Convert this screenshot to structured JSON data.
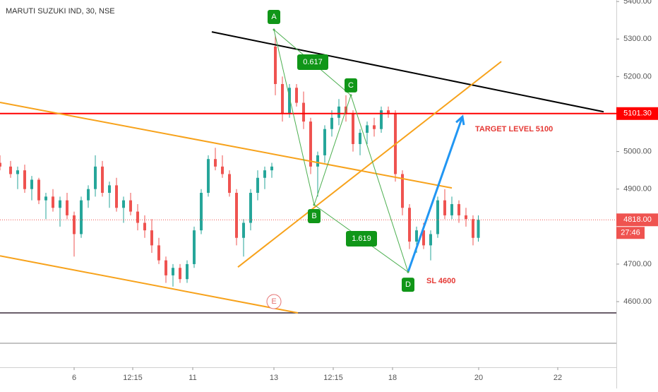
{
  "chart_data": {
    "type": "candlestick",
    "title": "MARUTI SUZUKI IND, 30, NSE",
    "up_color": "#26a69a",
    "down_color": "#ef5350",
    "x": [
      0,
      3,
      5,
      7,
      9,
      11,
      13,
      15,
      17,
      19,
      21,
      23,
      25,
      27,
      29,
      31,
      33,
      35,
      37,
      39,
      41,
      43,
      45,
      47,
      49,
      51,
      53,
      55,
      57,
      59,
      61,
      63,
      65,
      67,
      69,
      71,
      73,
      75,
      77,
      78,
      80,
      82,
      84,
      86,
      88,
      90,
      92,
      94,
      96,
      98,
      100,
      102,
      104,
      106,
      108,
      110,
      112,
      114,
      116,
      118,
      120,
      122,
      124,
      126,
      128,
      130,
      132,
      134,
      135.5
    ],
    "open": [
      4970,
      4960,
      4940,
      4950,
      4900,
      4925,
      4870,
      4880,
      4850,
      4870,
      4830,
      4780,
      4870,
      4900,
      4960,
      4890,
      4910,
      4850,
      4870,
      4840,
      4810,
      4790,
      4750,
      4710,
      4670,
      4690,
      4660,
      4700,
      4790,
      4890,
      4980,
      4960,
      4940,
      4890,
      4770,
      4810,
      4890,
      4930,
      4950,
      5280,
      5180,
      5100,
      5170,
      5130,
      5080,
      4960,
      4990,
      5060,
      5090,
      5120,
      5100,
      5020,
      5050,
      5070,
      5060,
      5110,
      5100,
      4940,
      4850,
      4760,
      4790,
      4750,
      4780,
      4870,
      4830,
      4860,
      4830,
      4820,
      4770
    ],
    "high": [
      4990,
      4975,
      4960,
      4965,
      4935,
      4930,
      4890,
      4900,
      4880,
      4890,
      4840,
      4880,
      4910,
      4990,
      4975,
      4920,
      4930,
      4880,
      4890,
      4860,
      4830,
      4820,
      4770,
      4720,
      4700,
      4700,
      4710,
      4800,
      4900,
      4990,
      5010,
      4990,
      4950,
      4900,
      4820,
      4900,
      4950,
      4960,
      4970,
      5310,
      5200,
      5180,
      5180,
      5160,
      5090,
      5000,
      5070,
      5110,
      5140,
      5150,
      5110,
      5060,
      5080,
      5090,
      5120,
      5120,
      5110,
      4950,
      4860,
      4800,
      4810,
      4790,
      4880,
      4900,
      4880,
      4870,
      4850,
      4830,
      4830
    ],
    "low": [
      4950,
      4930,
      4900,
      4890,
      4870,
      4860,
      4820,
      4840,
      4800,
      4820,
      4720,
      4770,
      4850,
      4880,
      4880,
      4850,
      4840,
      4810,
      4830,
      4790,
      4770,
      4730,
      4700,
      4650,
      4640,
      4650,
      4650,
      4690,
      4780,
      4880,
      4950,
      4930,
      4880,
      4750,
      4720,
      4790,
      4870,
      4900,
      4930,
      5150,
      5080,
      5090,
      5120,
      5060,
      4940,
      4880,
      4970,
      5040,
      5070,
      5080,
      5000,
      4990,
      5020,
      5040,
      5050,
      5090,
      4920,
      4830,
      4740,
      4730,
      4740,
      4710,
      4770,
      4820,
      4820,
      4810,
      4800,
      4750,
      4760
    ],
    "close": [
      4960,
      4940,
      4950,
      4900,
      4925,
      4870,
      4880,
      4850,
      4870,
      4830,
      4780,
      4870,
      4900,
      4960,
      4890,
      4910,
      4850,
      4870,
      4840,
      4810,
      4790,
      4750,
      4710,
      4670,
      4690,
      4660,
      4700,
      4790,
      4890,
      4980,
      4960,
      4940,
      4890,
      4770,
      4810,
      4890,
      4930,
      4950,
      4960,
      5180,
      5100,
      5170,
      5130,
      5080,
      4960,
      4990,
      5060,
      5090,
      5120,
      5100,
      5020,
      5050,
      5070,
      5060,
      5110,
      5100,
      4940,
      4850,
      4760,
      4790,
      4750,
      4780,
      4870,
      4830,
      4860,
      4830,
      4820,
      4770,
      4818
    ],
    "xlim": [
      0,
      174.6
    ],
    "ylim": [
      4425,
      5404
    ],
    "xticks": [
      {
        "value": 21,
        "label": "6"
      },
      {
        "value": 37.6,
        "label": "12:15"
      },
      {
        "value": 54.6,
        "label": "11"
      },
      {
        "value": 77.6,
        "label": "13"
      },
      {
        "value": 94.4,
        "label": "12:15"
      },
      {
        "value": 111.2,
        "label": "18"
      },
      {
        "value": 135.6,
        "label": "20"
      },
      {
        "value": 158,
        "label": "22"
      }
    ],
    "yticks": [
      {
        "value": 5400,
        "label": "5400.00"
      },
      {
        "value": 5300,
        "label": "5300.00"
      },
      {
        "value": 5200,
        "label": "5200.00"
      },
      {
        "value": 5000,
        "label": "5000.00"
      },
      {
        "value": 4900,
        "label": "4900.00"
      },
      {
        "value": 4700,
        "label": "4700.00"
      },
      {
        "value": 4600,
        "label": "4600.00"
      }
    ],
    "price_labels": [
      {
        "value": 5101.3,
        "label": "5101.30"
      },
      {
        "value": 4818,
        "label": "4818.00"
      }
    ],
    "countdown": "27:46",
    "lines": [
      {
        "color": "#000000",
        "points": [
          [
            60,
            5319
          ],
          [
            171,
            5106
          ]
        ]
      },
      {
        "color": "#f7a21b",
        "points": [
          [
            0,
            5131
          ],
          [
            128,
            4903
          ]
        ]
      },
      {
        "color": "#f7a21b",
        "points": [
          [
            0,
            4722
          ],
          [
            84.4,
            4570
          ]
        ]
      },
      {
        "color": "#f7a21b",
        "points": [
          [
            67.4,
            4692
          ],
          [
            142,
            5240
          ]
        ]
      },
      {
        "color": "#4caf50",
        "points": [
          [
            77.6,
            5325
          ],
          [
            89,
            4858
          ]
        ]
      },
      {
        "color": "#4caf50",
        "points": [
          [
            89,
            4858
          ],
          [
            99.4,
            5150
          ]
        ]
      },
      {
        "color": "#4caf50",
        "points": [
          [
            99.4,
            5150
          ],
          [
            115.6,
            4679
          ]
        ]
      },
      {
        "color": "#4caf50",
        "points": [
          [
            77.6,
            5325
          ],
          [
            99.4,
            5150
          ]
        ]
      },
      {
        "color": "#4caf50",
        "points": [
          [
            89,
            4858
          ],
          [
            115.6,
            4679
          ]
        ]
      },
      {
        "color": "#2196f3",
        "points": [
          [
            115.6,
            4679
          ],
          [
            131,
            5093
          ]
        ]
      }
    ],
    "pattern_points": [
      {
        "label": "A",
        "x": 77.6,
        "price": 5325
      },
      {
        "label": "B",
        "x": 89,
        "price": 4858
      },
      {
        "label": "C",
        "x": 99.4,
        "price": 5150
      },
      {
        "label": "D",
        "x": 115.6,
        "price": 4679
      }
    ],
    "ratio_labels": [
      "0.617",
      "1.619"
    ],
    "target_label": "TARGET LEVEL 5100",
    "stop_label": "SL 4600",
    "event_label": "E"
  }
}
